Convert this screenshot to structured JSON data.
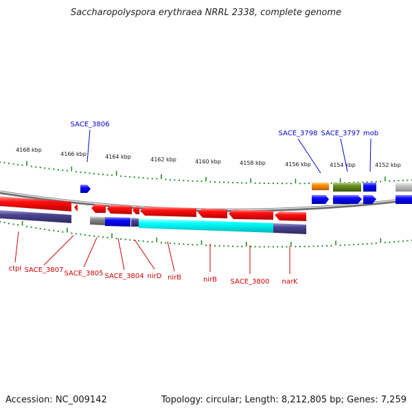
{
  "title": "Saccharopolyspora erythraea NRRL 2338, complete genome",
  "footer": {
    "accession": "Accession: NC_009142",
    "summary": "Topology: circular; Length: 8,212,805 bp; Genes: 7,259"
  },
  "ruler": [
    "4168 kbp",
    "4166 kbp",
    "4164 kbp",
    "4162 kbp",
    "4160 kbp",
    "4158 kbp",
    "4156 kbp",
    "4154 kbp",
    "4152 kbp"
  ],
  "labels_top": [
    "SACE_3806",
    "SACE_3798",
    "SACE_3797",
    "mob"
  ],
  "labels_bottom": [
    "ctpI",
    "SACE_3807",
    "SACE_3805",
    "SACE_3804",
    "nirD",
    "nirB",
    "nirB",
    "SACE_3800",
    "narK"
  ],
  "colors": {
    "forward": "#0000ff",
    "reverse": "#ff0000",
    "cds_cyan": "#00ffff",
    "cds_purple": "#4b4590",
    "cds_orange": "#ff8c00",
    "cds_green": "#6b8e23",
    "gray": "#808080",
    "tick": "#228b22",
    "label_forward": "#0000cc",
    "label_reverse": "#cc0000"
  }
}
